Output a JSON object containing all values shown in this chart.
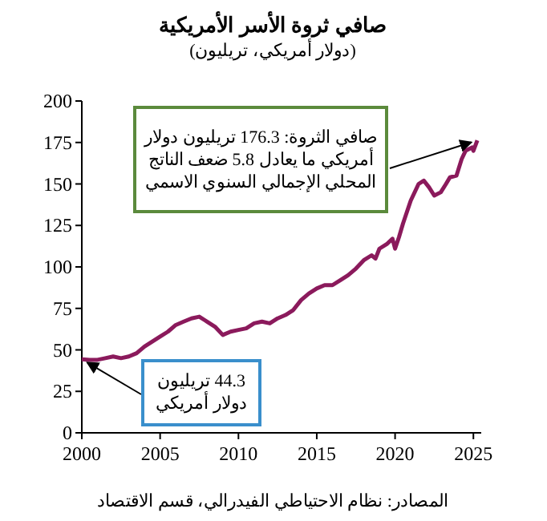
{
  "chart_data": {
    "type": "line",
    "title": "صافي ثروة الأسر الأمريكية",
    "subtitle": "(دولار أمريكي، تريليون)",
    "x": [
      "2000-01",
      "2000-07",
      "2001-01",
      "2001-07",
      "2002-01",
      "2002-07",
      "2003-01",
      "2003-07",
      "2004-01",
      "2004-07",
      "2005-01",
      "2005-07",
      "2006-01",
      "2006-07",
      "2007-01",
      "2007-07",
      "2008-01",
      "2008-07",
      "2009-01",
      "2009-07",
      "2010-01",
      "2010-07",
      "2011-01",
      "2011-07",
      "2012-01",
      "2012-07",
      "2013-01",
      "2013-07",
      "2014-01",
      "2014-07",
      "2015-01",
      "2015-07",
      "2016-01",
      "2016-07",
      "2017-01",
      "2017-07",
      "2018-01",
      "2018-07",
      "2018-10",
      "2019-01",
      "2019-07",
      "2019-11",
      "2020-01",
      "2020-04",
      "2020-07",
      "2021-01",
      "2021-07",
      "2021-11",
      "2022-03",
      "2022-07",
      "2022-12",
      "2023-04",
      "2023-07",
      "2023-12",
      "2024-04",
      "2024-07",
      "2024-12",
      "2025-01",
      "2025-04"
    ],
    "series": [
      {
        "color": "#8b1a5c",
        "values": [
          44.3,
          44,
          44,
          45,
          46,
          45,
          46,
          48,
          52,
          55,
          58,
          61,
          65,
          67,
          69,
          70,
          67,
          64,
          59,
          61,
          62,
          63,
          66,
          67,
          66,
          69,
          71,
          74,
          80,
          84,
          87,
          89,
          89,
          92,
          95,
          99,
          104,
          107,
          105,
          111,
          114,
          117,
          111,
          118,
          126,
          140,
          150,
          152,
          148,
          143,
          145,
          150,
          154,
          155,
          165,
          170,
          172,
          170,
          176.3
        ]
      }
    ],
    "xlim": [
      "2000-01",
      "2025-07"
    ],
    "xticks": [
      "2000",
      "2005",
      "2010",
      "2015",
      "2020",
      "2025"
    ],
    "ylim": [
      0,
      200
    ],
    "yticks": [
      0,
      25,
      50,
      75,
      100,
      125,
      150,
      175,
      200
    ],
    "grid": false,
    "annotations": [
      {
        "text": "صافي الثروة: 176.3 تريليون دولار أمريكي ما يعادل 5.8 ضعف الناتج المحلي الإجمالي السنوي الاسمي",
        "x": "2025-04",
        "y": 176.3
      },
      {
        "text": "44.3 تريليون دولار أمريكي",
        "x": "2000-01",
        "y": 44.3
      },
      "المصادر: نظام الاحتياطي الفيدرالي، قسم الاقتصاد"
    ]
  }
}
